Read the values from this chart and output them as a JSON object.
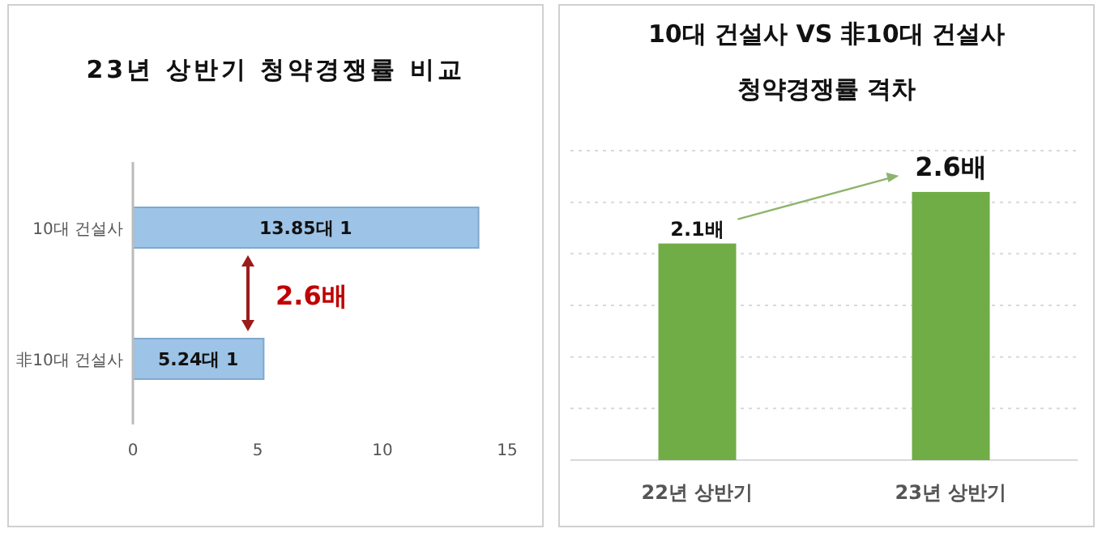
{
  "chart_data": [
    {
      "type": "bar",
      "orientation": "horizontal",
      "title": "23년 상반기 청약경쟁률 비교",
      "categories": [
        "10대 건설사",
        "非10대 건설사"
      ],
      "values": [
        13.85,
        5.24
      ],
      "value_labels": [
        "13.85대 1",
        "5.24대 1"
      ],
      "color": "#9dc3e6",
      "xlim": [
        0,
        15
      ],
      "xticks": [
        0,
        5,
        10,
        15
      ],
      "grid": false,
      "annotations": [
        "2.6배"
      ]
    },
    {
      "type": "bar",
      "title": "10대 건설사 VS 非10대 건설사\n청약경쟁률 격차",
      "categories": [
        "22년 상반기",
        "23년 상반기"
      ],
      "values": [
        2.1,
        2.6
      ],
      "value_labels": [
        "2.1배",
        "2.6배"
      ],
      "color": "#70ad47",
      "ylim": [
        0,
        3
      ],
      "yticks": [
        {
          "value": 0,
          "label": null
        },
        {
          "value": 0.5,
          "label": null
        },
        {
          "value": 1,
          "label": null
        },
        {
          "value": 1.5,
          "label": null
        },
        {
          "value": 2,
          "label": null
        },
        {
          "value": 2.5,
          "label": null
        },
        {
          "value": 3,
          "label": null
        }
      ],
      "tick_labels": "x",
      "grid": "y"
    }
  ]
}
